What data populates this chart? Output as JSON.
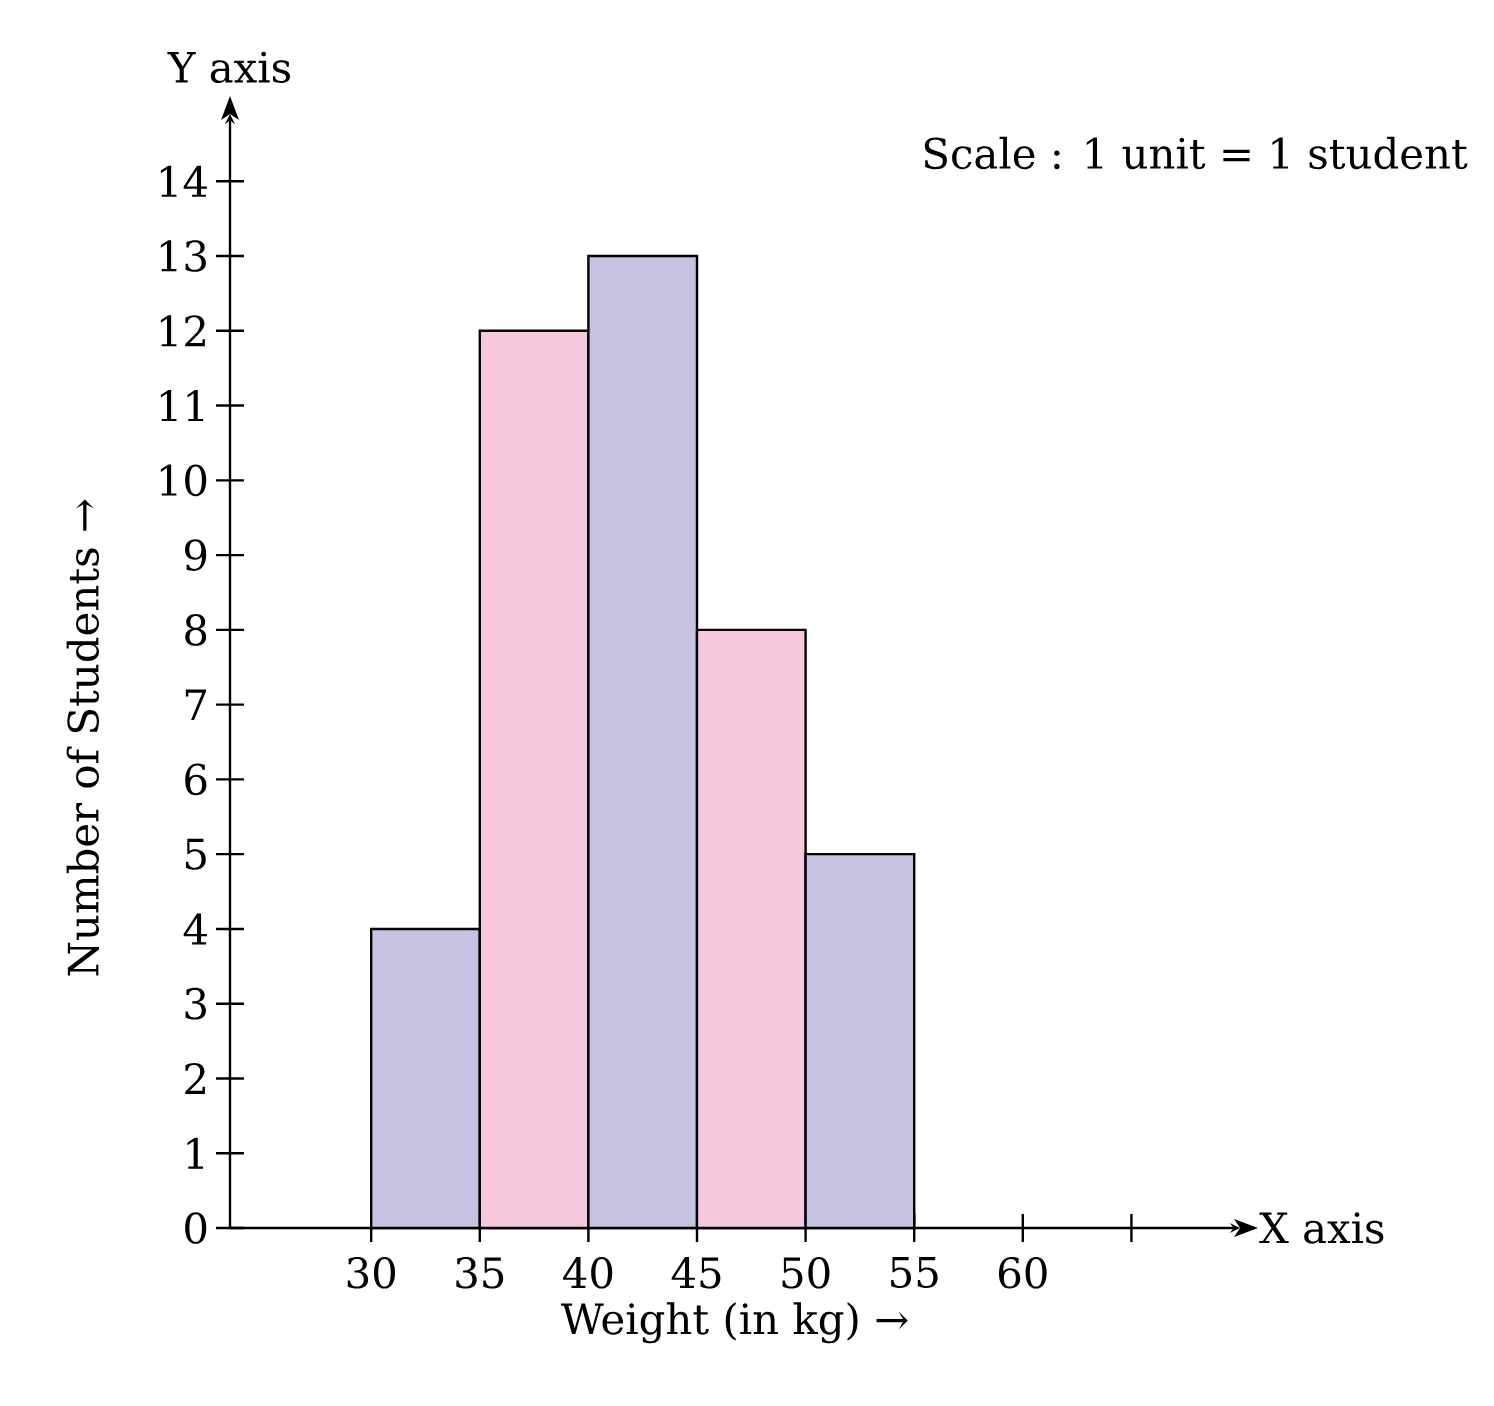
{
  "chart_data": {
    "type": "histogram",
    "xlabel": "Weight (in kg) →",
    "ylabel": "Number of Students →",
    "annotations": [
      "Y axis",
      "X axis",
      "Scale : 1 unit =  1 student"
    ],
    "bins": [
      30,
      35,
      40,
      45,
      50,
      55
    ],
    "values": [
      4,
      12,
      13,
      8,
      5
    ],
    "colors": [
      "#c5c3e1",
      "#f7c7dd",
      "#c5c3e1",
      "#f7c7dd",
      "#c5c3e1"
    ],
    "xlim": [
      23.5,
      70
    ],
    "ylim": [
      0,
      14.9
    ],
    "xticks": [
      30,
      35,
      40,
      45,
      50,
      55,
      60,
      {
        "value": 65,
        "label": null
      }
    ],
    "yticks": [
      0,
      1,
      2,
      3,
      4,
      5,
      6,
      7,
      8,
      9,
      10,
      11,
      12,
      13,
      14
    ]
  }
}
